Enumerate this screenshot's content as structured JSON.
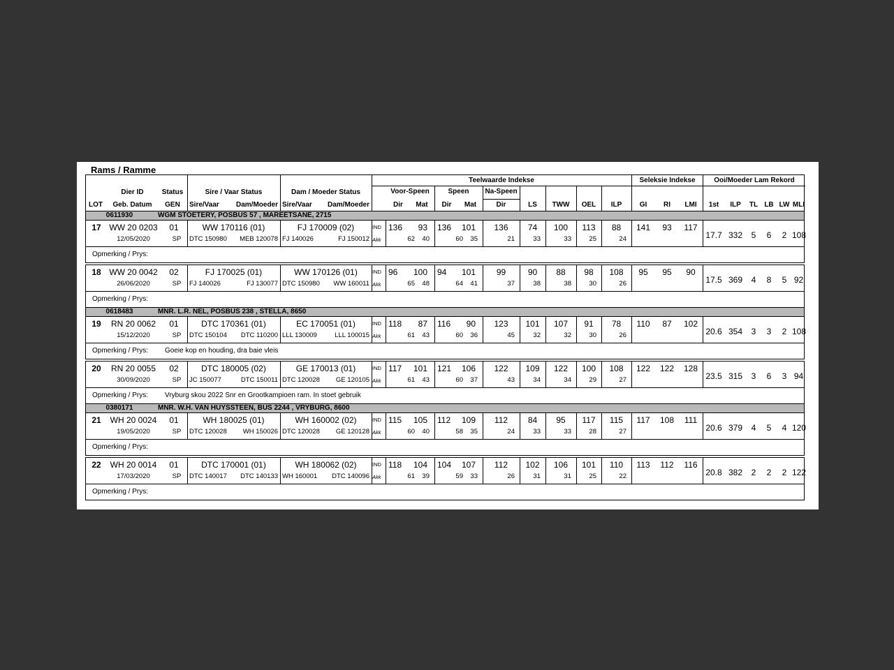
{
  "colors": {
    "backdrop": "#333333",
    "page": "#ffffff",
    "group_band": "#b9b9b9",
    "border": "#000000"
  },
  "page": {
    "title": "Rams / Ramme"
  },
  "header": {
    "teelwaarde": "Teelwaarde Indekse",
    "seleksie": "Seleksie Indekse",
    "ooi": "Ooi/Moeder Lam Rekord",
    "lot": "LOT",
    "dier_id": "Dier ID",
    "geb_datum": "Geb. Datum",
    "status": "Status",
    "gen": "GEN",
    "sire_status": "Sire / Vaar Status",
    "dam_status": "Dam / Moeder Status",
    "sire_vaar": "Sire/Vaar",
    "dam_moeder": "Dam/Moeder",
    "voor_speen": "Voor-Speen",
    "speen": "Speen",
    "na_speen": "Na-Speen",
    "dir": "Dir",
    "mat": "Mat",
    "ls": "LS",
    "tww": "TWW",
    "oel": "OEL",
    "ilp": "ILP",
    "gi": "GI",
    "ri": "RI",
    "lmi": "LMI",
    "ooi_cols": [
      "1st",
      "ILP",
      "TL",
      "LB",
      "LW",
      "MLI"
    ],
    "ind": "IND",
    "akk": "Akk",
    "opmerking": "Opmerking / Prys:"
  },
  "groups": [
    {
      "code": "0611930",
      "name": "WGM STOETERY, POSBUS 57 , MAREETSANE, 2715",
      "lots": [
        {
          "lot": "17",
          "dier_id": "WW 20 0203",
          "geb_datum": "12/05/2020",
          "status": "01",
          "gen": "SP",
          "sire": "WW  170116 (01)",
          "sire_sire": "DTC 150980",
          "sire_dam": "MEB 120078",
          "dam": "FJ  170009 (02)",
          "dam_sire": "FJ  140026",
          "dam_dam": "FJ  150012",
          "ind": [
            "136",
            "93",
            "136",
            "101",
            "136",
            "74",
            "100",
            "113",
            "88"
          ],
          "akk": [
            "62",
            "40",
            "60",
            "35",
            "21",
            "33",
            "33",
            "25",
            "24"
          ],
          "seleksie": [
            "141",
            "93",
            "117"
          ],
          "ooi": [
            "17.7",
            "332",
            "5",
            "6",
            "2",
            "108"
          ],
          "opmerking": ""
        },
        {
          "lot": "18",
          "dier_id": "WW 20 0042",
          "geb_datum": "26/06/2020",
          "status": "02",
          "gen": "SP",
          "sire": "FJ  170025 (01)",
          "sire_sire": "FJ  140026",
          "sire_dam": "FJ  130077",
          "dam": "WW  170126 (01)",
          "dam_sire": "DTC 150980",
          "dam_dam": "WW  160011",
          "ind": [
            "96",
            "100",
            "94",
            "101",
            "99",
            "90",
            "88",
            "98",
            "108"
          ],
          "akk": [
            "65",
            "48",
            "64",
            "41",
            "37",
            "38",
            "38",
            "30",
            "26"
          ],
          "seleksie": [
            "95",
            "95",
            "90"
          ],
          "ooi": [
            "17.5",
            "369",
            "4",
            "8",
            "5",
            "92"
          ],
          "opmerking": ""
        }
      ]
    },
    {
      "code": "0618483",
      "name": "MNR. L.R. NEL, POSBUS 238 , STELLA, 8650",
      "lots": [
        {
          "lot": "19",
          "dier_id": "RN 20 0062",
          "geb_datum": "15/12/2020",
          "status": "01",
          "gen": "SP",
          "sire": "DTC 170361 (01)",
          "sire_sire": "DTC 150104",
          "sire_dam": "DTC 110200",
          "dam": "EC  170051 (01)",
          "dam_sire": "LLL 130009",
          "dam_dam": "LLL 100015",
          "ind": [
            "118",
            "87",
            "116",
            "90",
            "123",
            "101",
            "107",
            "91",
            "78"
          ],
          "akk": [
            "61",
            "43",
            "60",
            "36",
            "45",
            "32",
            "32",
            "30",
            "26"
          ],
          "seleksie": [
            "110",
            "87",
            "102"
          ],
          "ooi": [
            "20.6",
            "354",
            "3",
            "3",
            "2",
            "108"
          ],
          "opmerking": "Goeie kop en houding, dra baie vleis"
        },
        {
          "lot": "20",
          "dier_id": "RN 20 0055",
          "geb_datum": "30/09/2020",
          "status": "02",
          "gen": "SP",
          "sire": "DTC 180005 (02)",
          "sire_sire": "JC  150077",
          "sire_dam": "DTC 150011",
          "dam": "GE  170013 (01)",
          "dam_sire": "DTC 120028",
          "dam_dam": "GE  120105",
          "ind": [
            "117",
            "101",
            "121",
            "106",
            "122",
            "109",
            "122",
            "100",
            "108"
          ],
          "akk": [
            "61",
            "43",
            "60",
            "37",
            "43",
            "34",
            "34",
            "29",
            "27"
          ],
          "seleksie": [
            "122",
            "122",
            "128"
          ],
          "ooi": [
            "23.5",
            "315",
            "3",
            "6",
            "3",
            "94"
          ],
          "opmerking": "Vryburg skou 2022 Snr en Grootkampioen ram. In stoet gebruik"
        }
      ]
    },
    {
      "code": "0380171",
      "name": "MNR. W.H. VAN HUYSSTEEN, BUS 2244 , VRYBURG, 8600",
      "lots": [
        {
          "lot": "21",
          "dier_id": "WH 20 0024",
          "geb_datum": "19/05/2020",
          "status": "01",
          "gen": "SP",
          "sire": "WH  180025 (01)",
          "sire_sire": "DTC 120028",
          "sire_dam": "WH  150026",
          "dam": "WH  160002 (02)",
          "dam_sire": "DTC 120028",
          "dam_dam": "GE  120128",
          "ind": [
            "115",
            "105",
            "112",
            "109",
            "112",
            "84",
            "95",
            "117",
            "115"
          ],
          "akk": [
            "60",
            "40",
            "58",
            "35",
            "24",
            "33",
            "33",
            "28",
            "27"
          ],
          "seleksie": [
            "117",
            "108",
            "111"
          ],
          "ooi": [
            "20.6",
            "379",
            "4",
            "5",
            "4",
            "120"
          ],
          "opmerking": ""
        },
        {
          "lot": "22",
          "dier_id": "WH 20 0014",
          "geb_datum": "17/03/2020",
          "status": "01",
          "gen": "SP",
          "sire": "DTC 170001 (01)",
          "sire_sire": "DTC 140017",
          "sire_dam": "DTC 140133",
          "dam": "WH  180062 (02)",
          "dam_sire": "WH  160001",
          "dam_dam": "DTC 140096",
          "ind": [
            "118",
            "104",
            "104",
            "107",
            "112",
            "102",
            "106",
            "101",
            "110"
          ],
          "akk": [
            "61",
            "39",
            "59",
            "33",
            "26",
            "31",
            "31",
            "25",
            "22"
          ],
          "seleksie": [
            "113",
            "112",
            "116"
          ],
          "ooi": [
            "20.8",
            "382",
            "2",
            "2",
            "2",
            "122"
          ],
          "opmerking": ""
        }
      ]
    }
  ]
}
